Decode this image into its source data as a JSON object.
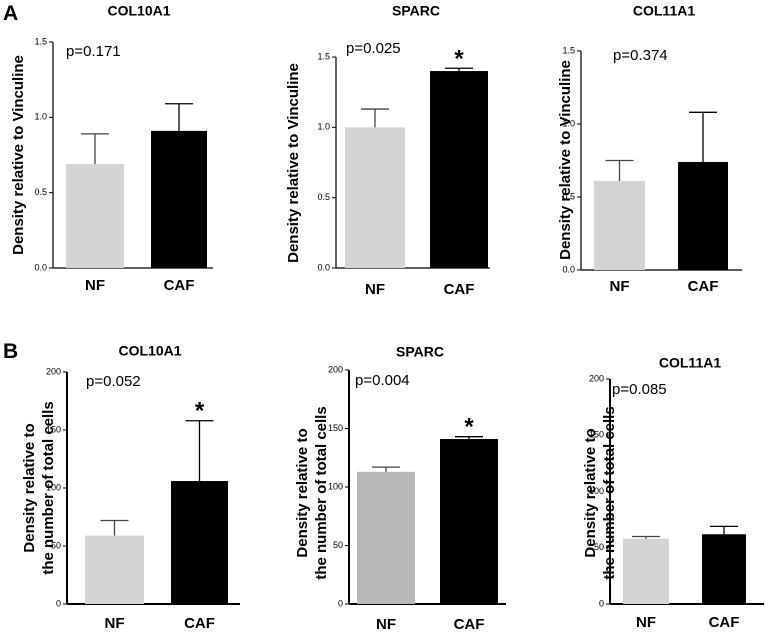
{
  "panels": [
    {
      "letter": "A"
    },
    {
      "letter": "B"
    }
  ],
  "chart_data": [
    {
      "type": "bar",
      "panel": "A",
      "title": "COL10A1",
      "ylabel": "Density relative to Vinculine",
      "categories": [
        "NF",
        "CAF"
      ],
      "values": [
        0.69,
        0.91
      ],
      "errors": [
        0.2,
        0.18
      ],
      "colors": [
        "#d3d3d3",
        "#000000"
      ],
      "ylim": [
        0,
        1.5
      ],
      "yticks": [
        "0.0",
        "0.5",
        "1.0",
        "1.5"
      ],
      "pvalue": "p=0.171",
      "significance": [
        "",
        ""
      ]
    },
    {
      "type": "bar",
      "panel": "A",
      "title": "SPARC",
      "ylabel": "Density relative to Vinculine",
      "categories": [
        "NF",
        "CAF"
      ],
      "values": [
        1.0,
        1.4
      ],
      "errors": [
        0.13,
        0.02
      ],
      "colors": [
        "#d3d3d3",
        "#000000"
      ],
      "ylim": [
        0,
        1.5
      ],
      "yticks": [
        "0.0",
        "0.5",
        "1.0",
        "1.5"
      ],
      "pvalue": "p=0.025",
      "significance": [
        "",
        "*"
      ]
    },
    {
      "type": "bar",
      "panel": "A",
      "title": "COL11A1",
      "ylabel": "Density relative to Vinculine",
      "categories": [
        "NF",
        "CAF"
      ],
      "values": [
        0.61,
        0.74
      ],
      "errors": [
        0.14,
        0.34
      ],
      "colors": [
        "#d3d3d3",
        "#000000"
      ],
      "ylim": [
        0,
        1.5
      ],
      "yticks": [
        "0.0",
        "0.5",
        "1.0",
        "1.5"
      ],
      "pvalue": "p=0.374",
      "significance": [
        "",
        ""
      ]
    },
    {
      "type": "bar",
      "panel": "B",
      "title": "COL10A1",
      "ylabel_lines": [
        "Density relative to",
        "the number of total cells"
      ],
      "categories": [
        "NF",
        "CAF"
      ],
      "values": [
        59,
        106
      ],
      "errors": [
        13,
        52
      ],
      "colors": [
        "#d3d3d3",
        "#000000"
      ],
      "ylim": [
        0,
        200
      ],
      "yticks": [
        "0",
        "50",
        "100",
        "150",
        "200"
      ],
      "pvalue": "p=0.052",
      "significance": [
        "",
        "*"
      ]
    },
    {
      "type": "bar",
      "panel": "B",
      "title": "SPARC",
      "ylabel_lines": [
        "Density relative to",
        "the number of total cells"
      ],
      "categories": [
        "NF",
        "CAF"
      ],
      "values": [
        113,
        141
      ],
      "errors": [
        4,
        2
      ],
      "colors": [
        "#b8b8b8",
        "#000000"
      ],
      "ylim": [
        0,
        200
      ],
      "yticks": [
        "0",
        "50",
        "100",
        "150",
        "200"
      ],
      "pvalue": "p=0.004",
      "significance": [
        "",
        "*"
      ]
    },
    {
      "type": "bar",
      "panel": "B",
      "title": "COL11A1",
      "ylabel_lines": [
        "Density relative to",
        "the number of total cells"
      ],
      "categories": [
        "NF",
        "CAF"
      ],
      "values": [
        58,
        62
      ],
      "errors": [
        2,
        7
      ],
      "colors": [
        "#d3d3d3",
        "#000000"
      ],
      "ylim": [
        0,
        200
      ],
      "yticks": [
        "0",
        "50",
        "100",
        "150",
        "200"
      ],
      "pvalue": "p=0.085",
      "significance": [
        "",
        ""
      ]
    }
  ]
}
